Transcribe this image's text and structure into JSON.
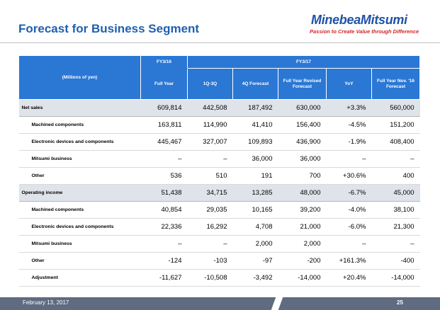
{
  "title": "Forecast for Business Segment",
  "logo": {
    "name": "MinebeaMitsumi",
    "tagline": "Passion to Create Value through Difference"
  },
  "table": {
    "unit_label": "(Millions of yen)",
    "group_fy16": "FY3/16",
    "group_fy17": "FY3/17",
    "columns": [
      "Full Year",
      "1Q-3Q",
      "4Q Forecast",
      "Full Year Revised Forecast",
      "YoY",
      "Full Year Nov. '16 Forecast"
    ],
    "rows": [
      {
        "label": "Net sales",
        "values": [
          "609,814",
          "442,508",
          "187,492",
          "630,000",
          "+3.3%",
          "560,000"
        ]
      },
      {
        "label": "Machined components",
        "values": [
          "163,811",
          "114,990",
          "41,410",
          "156,400",
          "-4.5%",
          "151,200"
        ]
      },
      {
        "label": "Electronic devices and components",
        "values": [
          "445,467",
          "327,007",
          "109,893",
          "436,900",
          "-1.9%",
          "408,400"
        ]
      },
      {
        "label": "Mitsumi business",
        "values": [
          "–",
          "–",
          "36,000",
          "36,000",
          "–",
          "–"
        ]
      },
      {
        "label": "Other",
        "values": [
          "536",
          "510",
          "191",
          "700",
          "+30.6%",
          "400"
        ]
      },
      {
        "label": "Operating income",
        "values": [
          "51,438",
          "34,715",
          "13,285",
          "48,000",
          "-6.7%",
          "45,000"
        ]
      },
      {
        "label": "Machined components",
        "values": [
          "40,854",
          "29,035",
          "10,165",
          "39,200",
          "-4.0%",
          "38,100"
        ]
      },
      {
        "label": "Electronic devices and components",
        "values": [
          "22,336",
          "16,292",
          "4,708",
          "21,000",
          "-6.0%",
          "21,300"
        ]
      },
      {
        "label": "Mitsumi business",
        "values": [
          "–",
          "–",
          "2,000",
          "2,000",
          "–",
          "–"
        ]
      },
      {
        "label": "Other",
        "values": [
          "-124",
          "-103",
          "-97",
          "-200",
          "+161.3%",
          "-400"
        ]
      },
      {
        "label": "Adjustment",
        "values": [
          "-11,627",
          "-10,508",
          "-3,492",
          "-14,000",
          "+20.4%",
          "-14,000"
        ]
      }
    ]
  },
  "footer": {
    "date": "February 13, 2017",
    "page": "25"
  },
  "colors": {
    "header_blue": "#2a77d4",
    "title_blue": "#1f5fb0",
    "tagline_red": "#d0262d",
    "highlight_row": "#dfe3ea",
    "footer_bar": "#5e6b80"
  }
}
